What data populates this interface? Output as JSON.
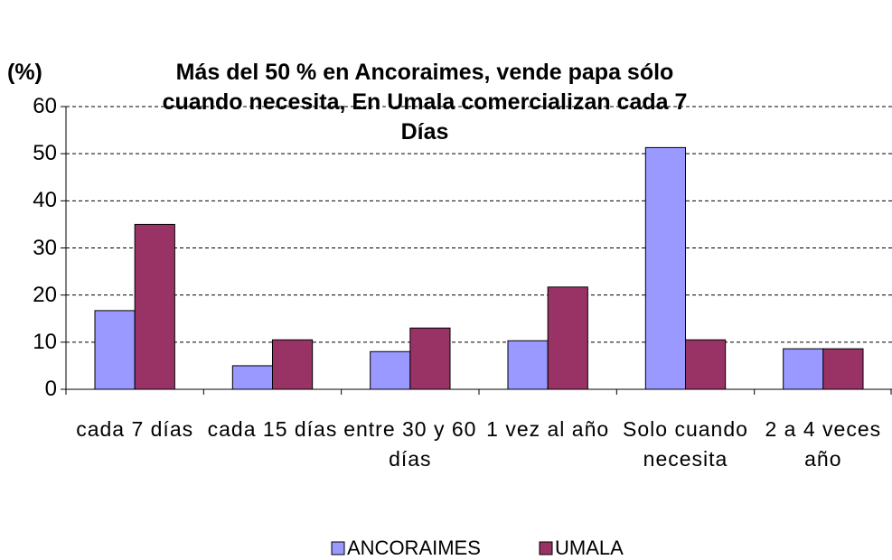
{
  "chart_data": {
    "type": "bar",
    "title": "Más del 50 % en Ancoraimes, vende papa sólo cuando necesita, En Umala comercializan cada 7 Días",
    "y_label": "(%)",
    "categories": [
      "cada 7 días",
      "cada 15 días",
      "entre 30 y 60 días",
      "1 vez al año",
      "Solo cuando necesita",
      "2 a 4 veces año"
    ],
    "series": [
      {
        "name": "ANCORAIMES",
        "color": "#9999ff",
        "values": [
          16.7,
          5,
          8,
          10.3,
          51.3,
          8.6
        ]
      },
      {
        "name": "UMALA",
        "color": "#993366",
        "values": [
          35,
          10.5,
          13,
          21.7,
          10.5,
          8.6
        ]
      }
    ],
    "ylim": [
      0,
      60
    ],
    "yticks": [
      0,
      10,
      20,
      30,
      40,
      50,
      60
    ],
    "grid": true,
    "legend": "bottom"
  }
}
